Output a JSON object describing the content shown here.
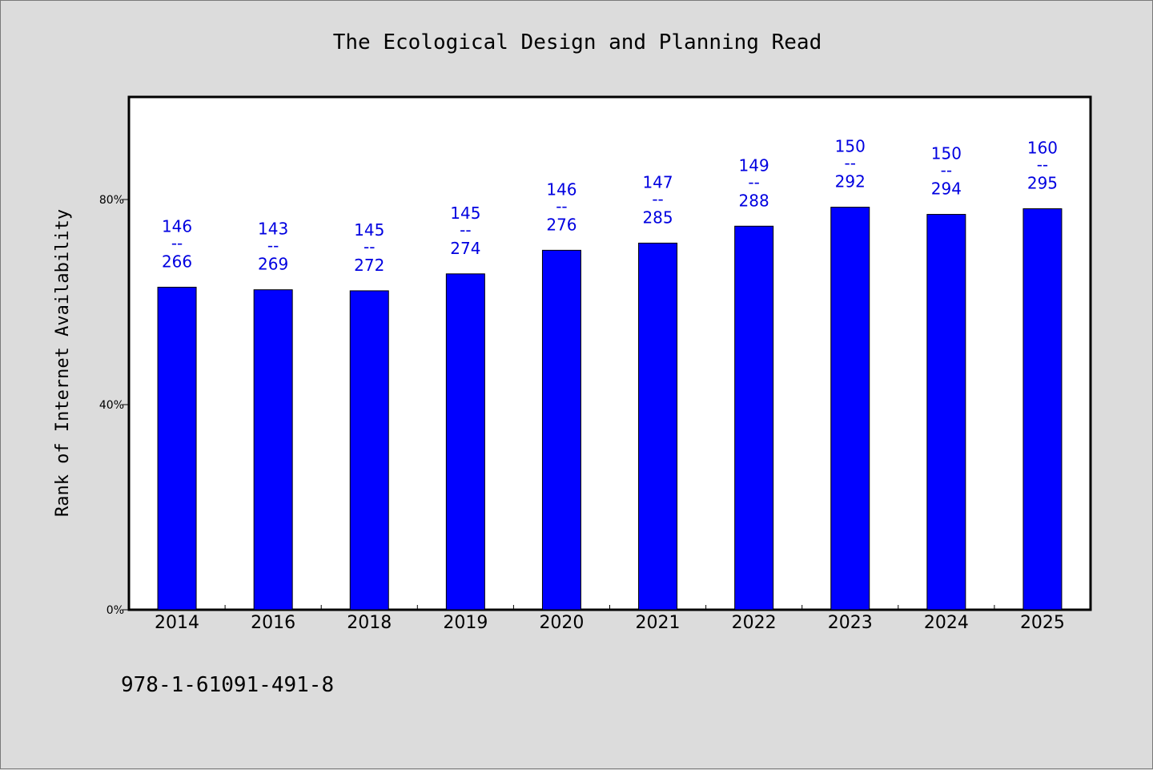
{
  "chart_data": {
    "type": "bar",
    "title": "The Ecological Design and Planning Read",
    "ylabel": "Rank of Internet Availability",
    "xlabel": "",
    "categories": [
      "2014",
      "2016",
      "2018",
      "2019",
      "2020",
      "2021",
      "2022",
      "2023",
      "2024",
      "2025"
    ],
    "values": [
      62.9,
      62.4,
      62.2,
      65.5,
      70.1,
      71.5,
      74.8,
      78.5,
      77.1,
      78.2
    ],
    "bar_labels": [
      {
        "top": "146",
        "sep": "--",
        "bottom": "266"
      },
      {
        "top": "143",
        "sep": "--",
        "bottom": "269"
      },
      {
        "top": "145",
        "sep": "--",
        "bottom": "272"
      },
      {
        "top": "145",
        "sep": "--",
        "bottom": "274"
      },
      {
        "top": "146",
        "sep": "--",
        "bottom": "276"
      },
      {
        "top": "147",
        "sep": "--",
        "bottom": "285"
      },
      {
        "top": "149",
        "sep": "--",
        "bottom": "288"
      },
      {
        "top": "150",
        "sep": "--",
        "bottom": "292"
      },
      {
        "top": "150",
        "sep": "--",
        "bottom": "294"
      },
      {
        "top": "160",
        "sep": "--",
        "bottom": "295"
      }
    ],
    "ylim": [
      0,
      100
    ],
    "yticks": [
      0,
      40,
      80
    ],
    "ytick_labels": [
      "0%",
      "40%",
      "80%"
    ],
    "grid": false,
    "legend": "none",
    "bar_color": "#0000ff",
    "label_color": "#0000e0"
  },
  "footer": {
    "isbn": "978-1-61091-491-8"
  }
}
